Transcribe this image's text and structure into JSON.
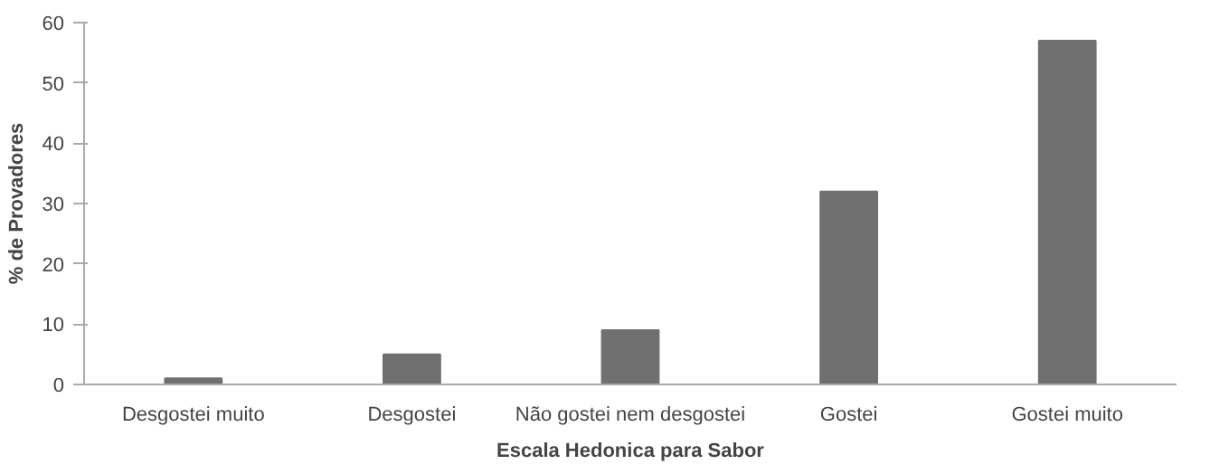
{
  "chart_data": {
    "type": "bar",
    "xlabel": "Escala Hedonica para Sabor",
    "ylabel": "% de Provadores",
    "categories": [
      "Desgostei muito",
      "Desgostei",
      "Não gostei nem desgostei",
      "Gostei",
      "Gostei muito"
    ],
    "values": [
      1,
      5,
      9,
      32,
      57
    ],
    "color": "#707070",
    "ylim": [
      0,
      60
    ],
    "yticks": [
      0,
      10,
      20,
      30,
      40,
      50,
      60
    ],
    "grid": false
  }
}
